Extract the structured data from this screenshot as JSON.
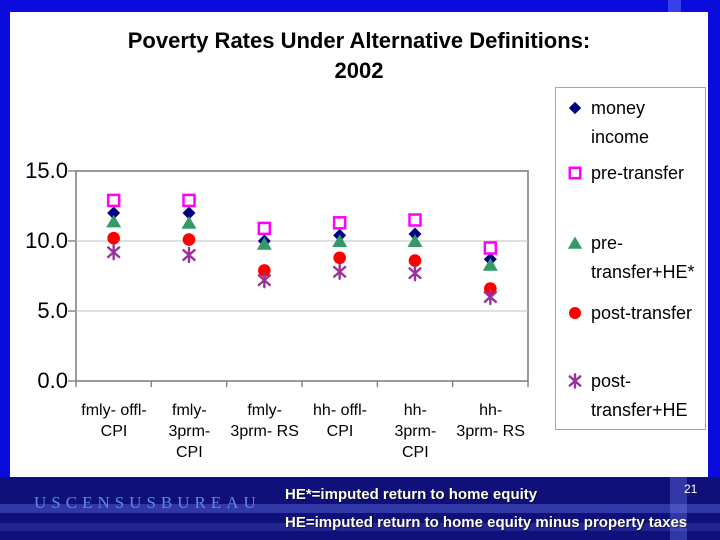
{
  "chart_data": {
    "type": "scatter",
    "title": "Poverty Rates Under Alternative Definitions: 2002",
    "title_lines": [
      "Poverty Rates Under Alternative Definitions:",
      "2002"
    ],
    "categories": [
      "fmly-offl-CPI",
      "fmly-3prm-CPI",
      "fmly-3prm-RS",
      "hh-offl-CPI",
      "hh-3prm-CPI",
      "hh-3prm-RS"
    ],
    "category_label_lines": [
      [
        "fmly- offl-",
        "CPI"
      ],
      [
        "fmly-",
        "3prm-",
        "CPI"
      ],
      [
        "fmly-",
        "3prm- RS"
      ],
      [
        "hh- offl-",
        "CPI"
      ],
      [
        "hh-",
        "3prm-",
        "CPI"
      ],
      [
        "hh-",
        "3prm- RS"
      ]
    ],
    "series": [
      {
        "name": "money income",
        "legend_lines": [
          "money",
          "income"
        ],
        "marker": "diamond",
        "color": "#000080",
        "values": [
          12.0,
          12.0,
          10.0,
          10.4,
          10.5,
          8.7
        ]
      },
      {
        "name": "pre-transfer",
        "legend_lines": [
          "pre-transfer"
        ],
        "marker": "open-square",
        "color": "#ff00ff",
        "values": [
          12.9,
          12.9,
          10.9,
          11.3,
          11.5,
          9.5
        ]
      },
      {
        "name": "pre-transfer+HE*",
        "legend_lines": [
          "pre-",
          "transfer+HE*"
        ],
        "marker": "triangle",
        "color": "#339966",
        "values": [
          11.4,
          11.3,
          9.8,
          10.0,
          10.0,
          8.3
        ]
      },
      {
        "name": "post-transfer",
        "legend_lines": [
          "post-transfer"
        ],
        "marker": "circle",
        "color": "#ff0000",
        "values": [
          10.2,
          10.1,
          7.9,
          8.8,
          8.6,
          6.6
        ]
      },
      {
        "name": "post-transfer+HE",
        "legend_lines": [
          "post-",
          "transfer+HE"
        ],
        "marker": "asterisk",
        "color": "#993399",
        "values": [
          9.2,
          9.0,
          7.2,
          7.8,
          7.7,
          6.0
        ]
      }
    ],
    "ylim": [
      0,
      15
    ],
    "yticks": [
      0,
      5,
      10,
      15
    ],
    "ytick_labels": [
      "0.0",
      "5.0",
      "10.0",
      "15.0"
    ],
    "grid": "horizontal",
    "legend_position": "right"
  },
  "footer": {
    "census_text": "USCENSUSBUREAU",
    "footnote1": "HE*=imputed return to home equity",
    "footnote2": "HE=imputed return to home equity minus property taxes",
    "page_number": "21"
  },
  "colors": {
    "frame_blue": "#0b0bdd",
    "footer_navy": "#10107a",
    "census_blue": "#5e8bd8",
    "plot_border_gray": "#808080",
    "gridline_gray": "#c0c0c0",
    "footnote_text": "#fffff0"
  }
}
